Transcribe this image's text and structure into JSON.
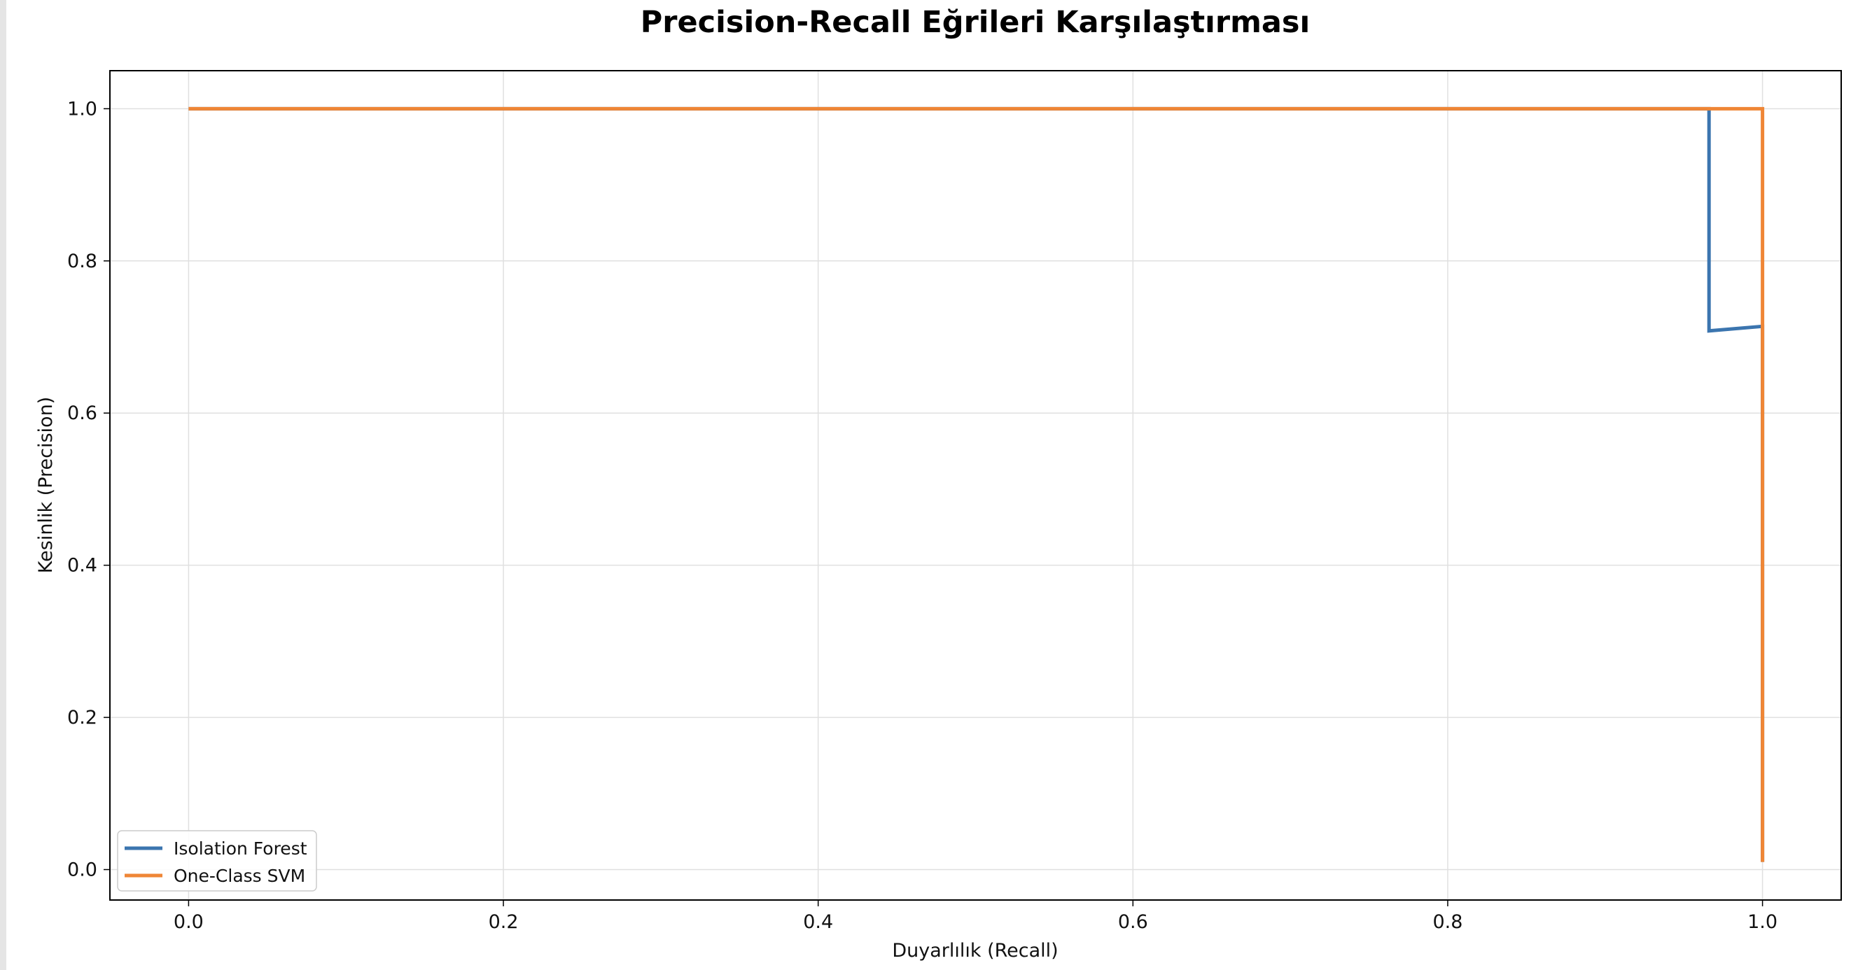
{
  "chart_data": {
    "type": "line",
    "title": "Precision-Recall Eğrileri Karşılaştırması",
    "xlabel": "Duyarlılık (Recall)",
    "ylabel": "Kesinlik (Precision)",
    "xlim": [
      -0.05,
      1.05
    ],
    "ylim": [
      -0.04,
      1.05
    ],
    "xticks": [
      "0.0",
      "0.2",
      "0.4",
      "0.6",
      "0.8",
      "1.0"
    ],
    "yticks": [
      "0.0",
      "0.2",
      "0.4",
      "0.6",
      "0.8",
      "1.0"
    ],
    "grid": true,
    "legend_position": "lower-left",
    "series": [
      {
        "name": "Isolation Forest",
        "color": "#3b75af",
        "points": [
          [
            0.0,
            1.0
          ],
          [
            0.966,
            1.0
          ],
          [
            0.966,
            0.708
          ],
          [
            1.0,
            0.714
          ],
          [
            1.0,
            0.01
          ]
        ]
      },
      {
        "name": "One-Class SVM",
        "color": "#ef8636",
        "points": [
          [
            0.0,
            1.0
          ],
          [
            1.0,
            1.0
          ],
          [
            1.0,
            0.01
          ]
        ]
      }
    ]
  }
}
